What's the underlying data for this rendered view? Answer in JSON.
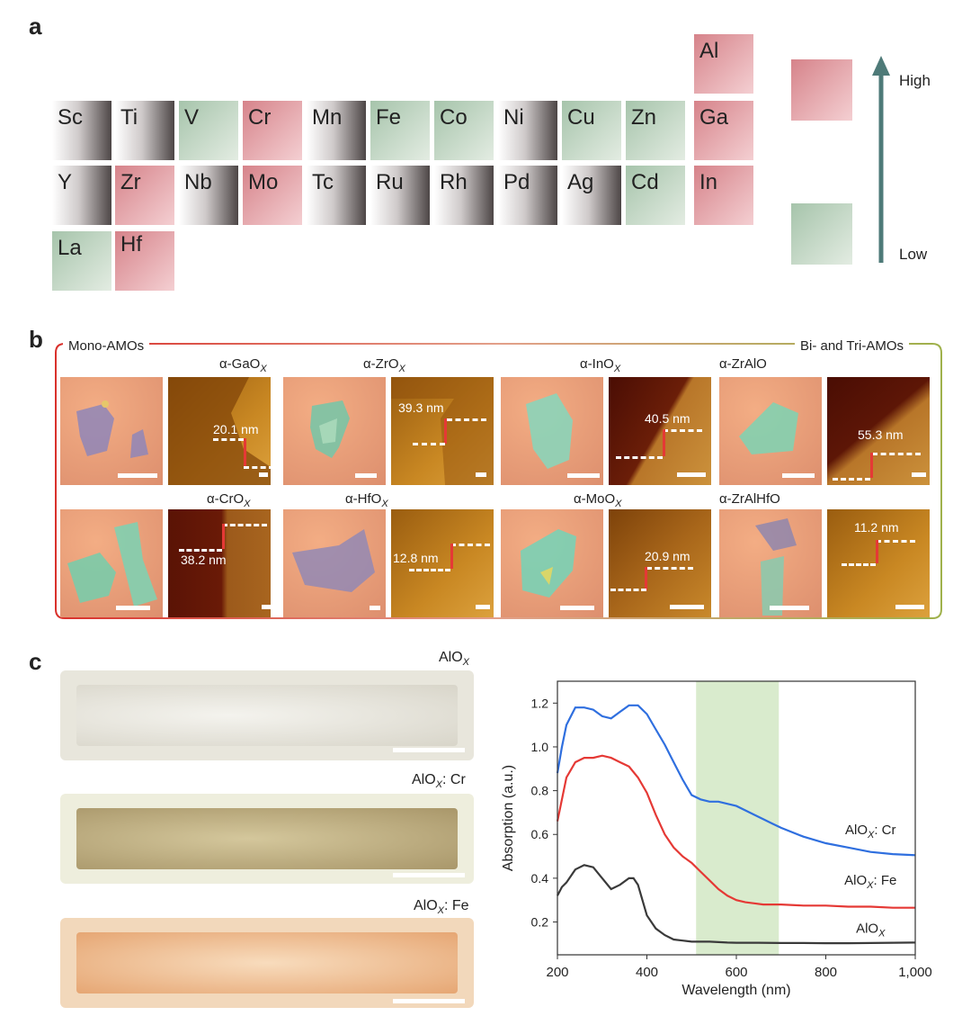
{
  "panels": {
    "a": "a",
    "b": "b",
    "c": "c"
  },
  "periodic_table": {
    "cells": [
      {
        "symbol": "Al",
        "color": "#e8a3a9"
      },
      {
        "symbol": "Sc",
        "color": "#8f8585"
      },
      {
        "symbol": "Ti",
        "color": "#8f8585"
      },
      {
        "symbol": "V",
        "color": "#b7cdb6"
      },
      {
        "symbol": "Cr",
        "color": "#e8a3a9"
      },
      {
        "symbol": "Mn",
        "color": "#8f8585"
      },
      {
        "symbol": "Fe",
        "color": "#b7cdb6"
      },
      {
        "symbol": "Co",
        "color": "#b7cdb6"
      },
      {
        "symbol": "Ni",
        "color": "#8f8585"
      },
      {
        "symbol": "Cu",
        "color": "#b7cdb6"
      },
      {
        "symbol": "Zn",
        "color": "#b7cdb6"
      },
      {
        "symbol": "Ga",
        "color": "#e8a3a9"
      },
      {
        "symbol": "Y",
        "color": "#8f8585"
      },
      {
        "symbol": "Zr",
        "color": "#e8a3a9"
      },
      {
        "symbol": "Nb",
        "color": "#8f8585"
      },
      {
        "symbol": "Mo",
        "color": "#e8a3a9"
      },
      {
        "symbol": "Tc",
        "color": "#8f8585"
      },
      {
        "symbol": "Ru",
        "color": "#8f8585"
      },
      {
        "symbol": "Rh",
        "color": "#8f8585"
      },
      {
        "symbol": "Pd",
        "color": "#8f8585"
      },
      {
        "symbol": "Ag",
        "color": "#8f8585"
      },
      {
        "symbol": "Cd",
        "color": "#b7cdb6"
      },
      {
        "symbol": "In",
        "color": "#e8a3a9"
      },
      {
        "symbol": "La",
        "color": "#b7cdb6"
      },
      {
        "symbol": "Hf",
        "color": "#e8a3a9"
      }
    ],
    "legend": {
      "high": "High",
      "low": "Low",
      "high_color": "#e8a3a9",
      "low_color": "#b7cdb6",
      "arrow_color": "#4e7a78"
    }
  },
  "panel_b": {
    "header_left": "Mono-AMOs",
    "header_right": "Bi- and Tri-AMOs",
    "materials": [
      {
        "prefix": "α-GaO",
        "sub": "X",
        "step": "20.1 nm"
      },
      {
        "prefix": "α-ZrO",
        "sub": "X",
        "step": "39.3 nm"
      },
      {
        "prefix": "α-InO",
        "sub": "X",
        "step": "40.5 nm"
      },
      {
        "prefix": "α-ZrAlO",
        "sub": "",
        "step": "55.3 nm"
      },
      {
        "prefix": "α-CrO",
        "sub": "X",
        "step": "38.2 nm"
      },
      {
        "prefix": "α-HfO",
        "sub": "X",
        "step": "12.8 nm"
      },
      {
        "prefix": "α-MoO",
        "sub": "X",
        "step": "20.9 nm"
      },
      {
        "prefix": "α-ZrAlHfO",
        "sub": "",
        "step": "11.2 nm"
      }
    ]
  },
  "panel_c": {
    "photos": [
      {
        "prefix": "AlO",
        "sub": "X",
        "suffix": ""
      },
      {
        "prefix": "AlO",
        "sub": "X",
        "suffix": ": Cr"
      },
      {
        "prefix": "AlO",
        "sub": "X",
        "suffix": ": Fe"
      }
    ]
  },
  "chart_data": {
    "type": "line",
    "title": "",
    "xlabel": "Wavelength (nm)",
    "ylabel": "Absorption (a.u.)",
    "xlim": [
      200,
      1000
    ],
    "ylim": [
      0.05,
      1.3
    ],
    "xticks": [
      200,
      400,
      600,
      800,
      1000
    ],
    "xtick_labels": [
      "200",
      "400",
      "600",
      "800",
      "1,000"
    ],
    "yticks": [
      0.2,
      0.4,
      0.6,
      0.8,
      1.0,
      1.2
    ],
    "ytick_labels": [
      "0.2",
      "0.4",
      "0.6",
      "0.8",
      "1.0",
      "1.2"
    ],
    "highlight_band": {
      "x": [
        510,
        695
      ],
      "color": "#d9ebcd"
    },
    "series": [
      {
        "name": "AlOX: Cr",
        "label_prefix": "AlO",
        "label_sub": "X",
        "label_suffix": ": Cr",
        "color": "#2f6fdf",
        "x": [
          200,
          210,
          220,
          240,
          260,
          280,
          300,
          320,
          340,
          360,
          380,
          400,
          420,
          440,
          460,
          480,
          500,
          520,
          540,
          560,
          580,
          600,
          620,
          640,
          660,
          680,
          700,
          750,
          800,
          850,
          900,
          950,
          1000
        ],
        "y": [
          0.88,
          1.0,
          1.1,
          1.18,
          1.18,
          1.17,
          1.14,
          1.13,
          1.16,
          1.19,
          1.19,
          1.15,
          1.08,
          1.01,
          0.93,
          0.85,
          0.78,
          0.76,
          0.75,
          0.75,
          0.74,
          0.73,
          0.71,
          0.69,
          0.67,
          0.65,
          0.63,
          0.59,
          0.56,
          0.54,
          0.52,
          0.51,
          0.505
        ]
      },
      {
        "name": "AlOX: Fe",
        "label_prefix": "AlO",
        "label_sub": "X",
        "label_suffix": ": Fe",
        "color": "#e53935",
        "x": [
          200,
          210,
          220,
          240,
          260,
          280,
          300,
          320,
          340,
          360,
          380,
          400,
          420,
          440,
          460,
          480,
          500,
          520,
          540,
          560,
          580,
          600,
          620,
          640,
          660,
          680,
          700,
          750,
          800,
          850,
          900,
          950,
          1000
        ],
        "y": [
          0.66,
          0.76,
          0.86,
          0.93,
          0.95,
          0.95,
          0.96,
          0.95,
          0.93,
          0.91,
          0.86,
          0.79,
          0.69,
          0.6,
          0.54,
          0.5,
          0.47,
          0.43,
          0.39,
          0.35,
          0.32,
          0.3,
          0.29,
          0.285,
          0.28,
          0.28,
          0.28,
          0.275,
          0.275,
          0.27,
          0.27,
          0.265,
          0.265
        ]
      },
      {
        "name": "AlOX",
        "label_prefix": "AlO",
        "label_sub": "X",
        "label_suffix": "",
        "color": "#3a3a3a",
        "x": [
          200,
          210,
          220,
          240,
          260,
          280,
          300,
          320,
          340,
          360,
          370,
          380,
          400,
          420,
          440,
          460,
          480,
          500,
          520,
          540,
          560,
          580,
          600,
          650,
          700,
          750,
          800,
          850,
          900,
          950,
          1000
        ],
        "y": [
          0.32,
          0.36,
          0.38,
          0.44,
          0.46,
          0.45,
          0.4,
          0.35,
          0.37,
          0.4,
          0.4,
          0.37,
          0.23,
          0.17,
          0.14,
          0.12,
          0.115,
          0.11,
          0.11,
          0.11,
          0.108,
          0.106,
          0.105,
          0.105,
          0.104,
          0.104,
          0.103,
          0.103,
          0.104,
          0.105,
          0.106
        ]
      }
    ]
  }
}
